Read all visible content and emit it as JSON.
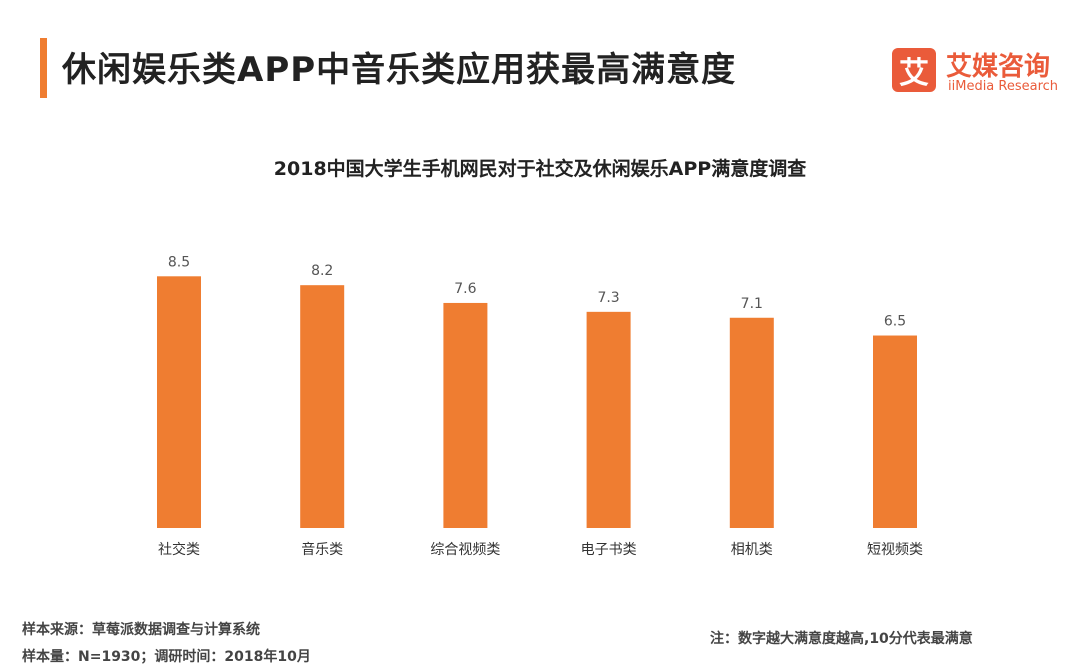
{
  "header": {
    "title": "休闲娱乐类APP中音乐类应用获最高满意度",
    "logo_mark": "艾",
    "logo_cn": "艾媒咨询",
    "logo_en": "iiMedia Research"
  },
  "chart_data": {
    "type": "bar",
    "title": "2018中国大学生手机网民对于社交及休闲娱乐APP满意度调查",
    "categories": [
      "社交类",
      "音乐类",
      "综合视频类",
      "电子书类",
      "相机类",
      "短视频类"
    ],
    "values": [
      8.5,
      8.2,
      7.6,
      7.3,
      7.1,
      6.5
    ],
    "data_labels": [
      "8.5",
      "8.2",
      "7.6",
      "7.3",
      "7.1",
      "6.5"
    ],
    "xlabel": "",
    "ylabel": "",
    "ylim": [
      0,
      10.3
    ],
    "grid": false,
    "legend": "none",
    "bar_color": "#ef7d31"
  },
  "footer": {
    "source": "样本来源：草莓派数据调查与计算系统",
    "sample": "样本量：N=1930；调研时间：2018年10月",
    "note": "注：数字越大满意度越高,10分代表最满意"
  }
}
